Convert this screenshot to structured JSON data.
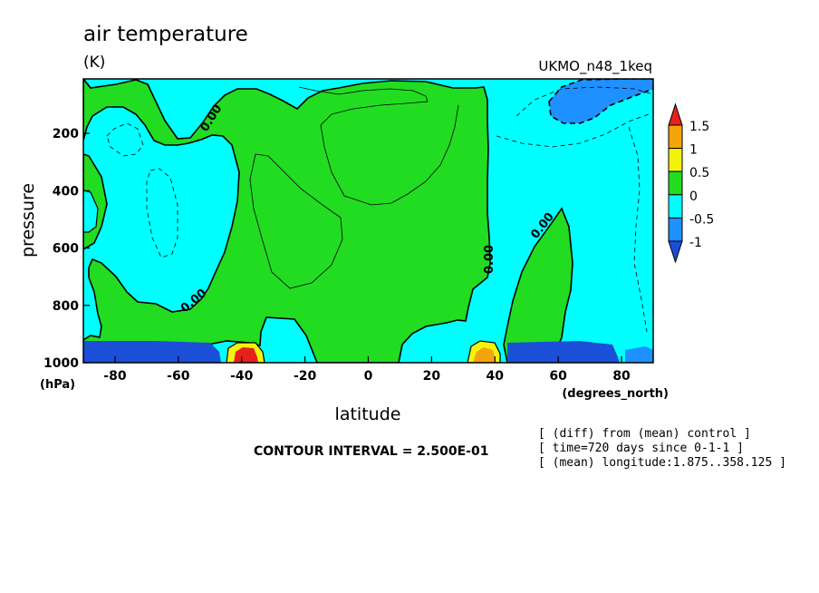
{
  "chart_data": {
    "type": "heatmap",
    "title": "air temperature",
    "units": "(K)",
    "dataset": "UKMO_n48_1keq",
    "xlabel": "latitude",
    "x_units": "(degrees_north)",
    "ylabel": "pressure",
    "y_units": "(hPa)",
    "xlim": [
      -90,
      90
    ],
    "ylim": [
      1000,
      10
    ],
    "x_ticks": [
      -80,
      -60,
      -40,
      -20,
      0,
      20,
      40,
      60,
      80
    ],
    "y_ticks": [
      200,
      400,
      600,
      800,
      1000
    ],
    "contour_interval_text": "CONTOUR INTERVAL = 2.500E-01",
    "notes": [
      "[ (diff) from (mean) control ]",
      "[ time=720 days since 0-1-1 ]",
      "[ (mean) longitude:1.875..358.125 ]"
    ],
    "contour_labels": [
      "0.00",
      "0.00",
      "0.00",
      "0.00"
    ],
    "colorbar": {
      "labels": [
        "1.5",
        "1",
        "0.5",
        "0",
        "-0.5",
        "-1"
      ],
      "colors": [
        "#e8201c",
        "#f5a40c",
        "#f2f20c",
        "#22dc22",
        "#00ffff",
        "#1e90ff",
        "#1c4fd8"
      ]
    },
    "regions": [
      {
        "name": "positive 0 to 0.5 K",
        "color": "#22dc22"
      },
      {
        "name": "negative -0.5 to 0 K",
        "color": "#00ffff"
      },
      {
        "name": "negative -1 to -0.5 K",
        "color": "#1e90ff"
      }
    ]
  }
}
